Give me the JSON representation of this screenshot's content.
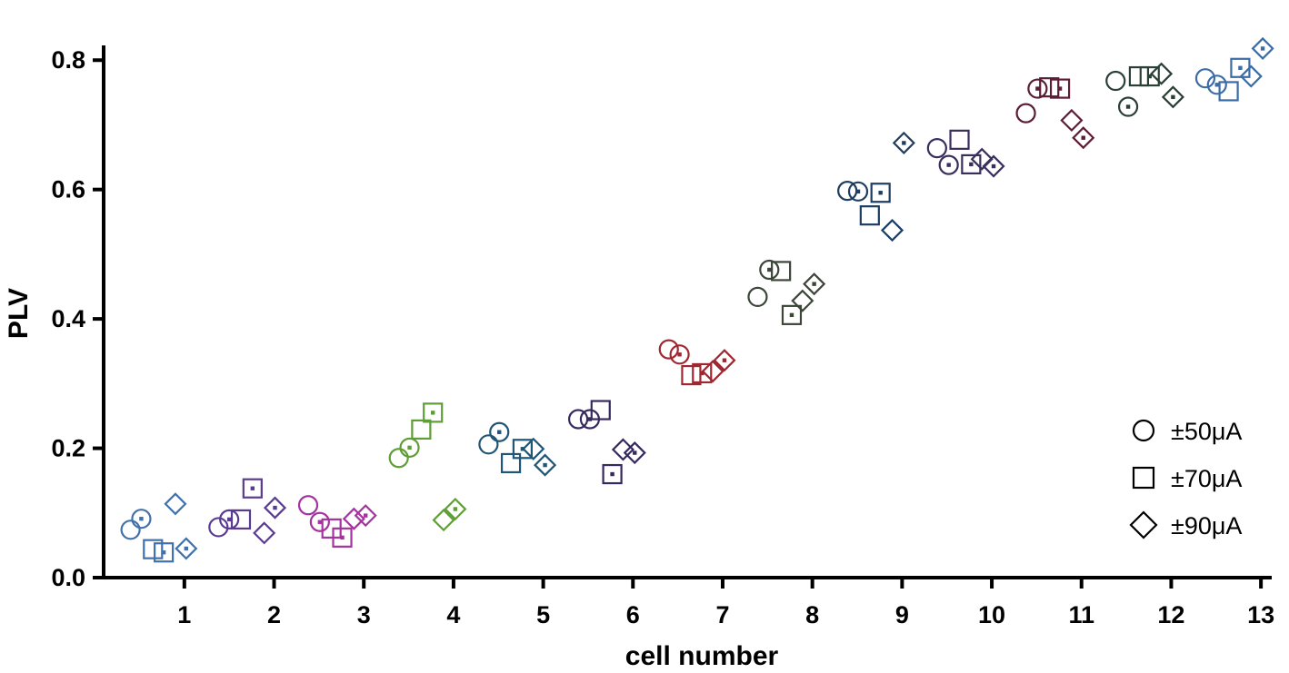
{
  "chart_data": {
    "type": "scatter",
    "title": "",
    "xlabel": "cell number",
    "ylabel": "PLV",
    "xlim": [
      0.1,
      13.1
    ],
    "ylim": [
      0.0,
      0.82
    ],
    "x_ticks": [
      1,
      2,
      3,
      4,
      5,
      6,
      7,
      8,
      9,
      10,
      11,
      12,
      13
    ],
    "x_tick_labels": [
      "1",
      "2",
      "3",
      "4",
      "5",
      "6",
      "7",
      "8",
      "9",
      "10",
      "11",
      "12",
      "13"
    ],
    "y_ticks": [
      0.0,
      0.2,
      0.4,
      0.6,
      0.8
    ],
    "y_tick_labels": [
      "0.0",
      "0.2",
      "0.4",
      "0.6",
      "0.8"
    ],
    "grid": false,
    "legend_position": "bottom-right",
    "legend": [
      {
        "symbol": "circle",
        "label": "±50μA"
      },
      {
        "symbol": "square",
        "label": "±70μA"
      },
      {
        "symbol": "diamond",
        "label": "±90μA"
      }
    ],
    "cells": [
      {
        "cell": 1,
        "color": "#3f72ad",
        "points": [
          {
            "x": 0.4,
            "y": 0.074,
            "symbol": "circle",
            "dot": false
          },
          {
            "x": 0.52,
            "y": 0.091,
            "symbol": "circle",
            "dot": true
          },
          {
            "x": 0.65,
            "y": 0.044,
            "symbol": "square",
            "dot": false
          },
          {
            "x": 0.77,
            "y": 0.039,
            "symbol": "square",
            "dot": true
          },
          {
            "x": 0.9,
            "y": 0.114,
            "symbol": "diamond",
            "dot": false
          },
          {
            "x": 1.02,
            "y": 0.045,
            "symbol": "diamond",
            "dot": true
          }
        ]
      },
      {
        "cell": 2,
        "color": "#5a3a92",
        "points": [
          {
            "x": 1.38,
            "y": 0.078,
            "symbol": "circle",
            "dot": false
          },
          {
            "x": 1.5,
            "y": 0.09,
            "symbol": "circle",
            "dot": true
          },
          {
            "x": 1.63,
            "y": 0.09,
            "symbol": "square",
            "dot": false
          },
          {
            "x": 1.76,
            "y": 0.138,
            "symbol": "square",
            "dot": true
          },
          {
            "x": 1.89,
            "y": 0.069,
            "symbol": "diamond",
            "dot": false
          },
          {
            "x": 2.01,
            "y": 0.108,
            "symbol": "diamond",
            "dot": true
          }
        ]
      },
      {
        "cell": 3,
        "color": "#a4339e",
        "points": [
          {
            "x": 2.38,
            "y": 0.112,
            "symbol": "circle",
            "dot": false
          },
          {
            "x": 2.51,
            "y": 0.086,
            "symbol": "circle",
            "dot": true
          },
          {
            "x": 2.64,
            "y": 0.076,
            "symbol": "square",
            "dot": false
          },
          {
            "x": 2.76,
            "y": 0.062,
            "symbol": "square",
            "dot": true
          },
          {
            "x": 2.89,
            "y": 0.091,
            "symbol": "diamond",
            "dot": false
          },
          {
            "x": 3.02,
            "y": 0.096,
            "symbol": "diamond",
            "dot": true
          }
        ]
      },
      {
        "cell": 4,
        "color": "#5e9e34",
        "points": [
          {
            "x": 3.39,
            "y": 0.185,
            "symbol": "circle",
            "dot": false
          },
          {
            "x": 3.51,
            "y": 0.201,
            "symbol": "circle",
            "dot": true
          },
          {
            "x": 3.64,
            "y": 0.229,
            "symbol": "square",
            "dot": false
          },
          {
            "x": 3.77,
            "y": 0.255,
            "symbol": "square",
            "dot": true
          },
          {
            "x": 3.89,
            "y": 0.089,
            "symbol": "diamond",
            "dot": false
          },
          {
            "x": 4.02,
            "y": 0.106,
            "symbol": "diamond",
            "dot": true
          }
        ]
      },
      {
        "cell": 5,
        "color": "#1f5577",
        "points": [
          {
            "x": 4.39,
            "y": 0.206,
            "symbol": "circle",
            "dot": false
          },
          {
            "x": 4.51,
            "y": 0.225,
            "symbol": "circle",
            "dot": true
          },
          {
            "x": 4.64,
            "y": 0.177,
            "symbol": "square",
            "dot": false
          },
          {
            "x": 4.77,
            "y": 0.199,
            "symbol": "square",
            "dot": true
          },
          {
            "x": 4.89,
            "y": 0.199,
            "symbol": "diamond",
            "dot": false
          },
          {
            "x": 5.02,
            "y": 0.174,
            "symbol": "diamond",
            "dot": true
          }
        ]
      },
      {
        "cell": 6,
        "color": "#35295e",
        "points": [
          {
            "x": 5.39,
            "y": 0.245,
            "symbol": "circle",
            "dot": false
          },
          {
            "x": 5.52,
            "y": 0.245,
            "symbol": "circle",
            "dot": true
          },
          {
            "x": 5.64,
            "y": 0.259,
            "symbol": "square",
            "dot": false
          },
          {
            "x": 5.77,
            "y": 0.16,
            "symbol": "square",
            "dot": true
          },
          {
            "x": 5.89,
            "y": 0.198,
            "symbol": "diamond",
            "dot": false
          },
          {
            "x": 6.02,
            "y": 0.193,
            "symbol": "diamond",
            "dot": true
          }
        ]
      },
      {
        "cell": 7,
        "color": "#9e2831",
        "points": [
          {
            "x": 6.4,
            "y": 0.353,
            "symbol": "circle",
            "dot": false
          },
          {
            "x": 6.52,
            "y": 0.345,
            "symbol": "circle",
            "dot": true
          },
          {
            "x": 6.65,
            "y": 0.313,
            "symbol": "square",
            "dot": false
          },
          {
            "x": 6.77,
            "y": 0.316,
            "symbol": "square",
            "dot": true
          },
          {
            "x": 6.89,
            "y": 0.319,
            "symbol": "diamond",
            "dot": false
          },
          {
            "x": 7.02,
            "y": 0.336,
            "symbol": "diamond",
            "dot": true
          }
        ]
      },
      {
        "cell": 8,
        "color": "#3b4639",
        "points": [
          {
            "x": 7.39,
            "y": 0.434,
            "symbol": "circle",
            "dot": false
          },
          {
            "x": 7.52,
            "y": 0.476,
            "symbol": "circle",
            "dot": true
          },
          {
            "x": 7.65,
            "y": 0.474,
            "symbol": "square",
            "dot": false
          },
          {
            "x": 7.77,
            "y": 0.406,
            "symbol": "square",
            "dot": true
          },
          {
            "x": 7.89,
            "y": 0.428,
            "symbol": "diamond",
            "dot": false
          },
          {
            "x": 8.02,
            "y": 0.454,
            "symbol": "diamond",
            "dot": true
          }
        ]
      },
      {
        "cell": 9,
        "color": "#1d3d62",
        "points": [
          {
            "x": 8.39,
            "y": 0.598,
            "symbol": "circle",
            "dot": false
          },
          {
            "x": 8.51,
            "y": 0.597,
            "symbol": "circle",
            "dot": true
          },
          {
            "x": 8.64,
            "y": 0.56,
            "symbol": "square",
            "dot": false
          },
          {
            "x": 8.76,
            "y": 0.595,
            "symbol": "square",
            "dot": true
          },
          {
            "x": 8.89,
            "y": 0.537,
            "symbol": "diamond",
            "dot": false
          },
          {
            "x": 9.02,
            "y": 0.672,
            "symbol": "diamond",
            "dot": true
          }
        ]
      },
      {
        "cell": 10,
        "color": "#3a2f5c",
        "points": [
          {
            "x": 9.39,
            "y": 0.664,
            "symbol": "circle",
            "dot": false
          },
          {
            "x": 9.52,
            "y": 0.638,
            "symbol": "circle",
            "dot": true
          },
          {
            "x": 9.64,
            "y": 0.677,
            "symbol": "square",
            "dot": false
          },
          {
            "x": 9.77,
            "y": 0.639,
            "symbol": "square",
            "dot": true
          },
          {
            "x": 9.89,
            "y": 0.647,
            "symbol": "diamond",
            "dot": false
          },
          {
            "x": 10.02,
            "y": 0.636,
            "symbol": "diamond",
            "dot": true
          }
        ]
      },
      {
        "cell": 11,
        "color": "#5b1e37",
        "points": [
          {
            "x": 10.38,
            "y": 0.718,
            "symbol": "circle",
            "dot": false
          },
          {
            "x": 10.51,
            "y": 0.756,
            "symbol": "circle",
            "dot": true
          },
          {
            "x": 10.64,
            "y": 0.758,
            "symbol": "square",
            "dot": false
          },
          {
            "x": 10.76,
            "y": 0.756,
            "symbol": "square",
            "dot": true
          },
          {
            "x": 10.89,
            "y": 0.707,
            "symbol": "diamond",
            "dot": false
          },
          {
            "x": 11.02,
            "y": 0.68,
            "symbol": "diamond",
            "dot": true
          }
        ]
      },
      {
        "cell": 12,
        "color": "#2b3f36",
        "points": [
          {
            "x": 11.38,
            "y": 0.768,
            "symbol": "circle",
            "dot": false
          },
          {
            "x": 11.52,
            "y": 0.728,
            "symbol": "circle",
            "dot": true
          },
          {
            "x": 11.64,
            "y": 0.775,
            "symbol": "square",
            "dot": false
          },
          {
            "x": 11.76,
            "y": 0.775,
            "symbol": "square",
            "dot": true
          },
          {
            "x": 11.89,
            "y": 0.779,
            "symbol": "diamond",
            "dot": false
          },
          {
            "x": 12.02,
            "y": 0.743,
            "symbol": "diamond",
            "dot": true
          }
        ]
      },
      {
        "cell": 13,
        "color": "#3c6ca6",
        "points": [
          {
            "x": 12.38,
            "y": 0.772,
            "symbol": "circle",
            "dot": false
          },
          {
            "x": 12.51,
            "y": 0.762,
            "symbol": "circle",
            "dot": true
          },
          {
            "x": 12.64,
            "y": 0.752,
            "symbol": "square",
            "dot": false
          },
          {
            "x": 12.77,
            "y": 0.788,
            "symbol": "square",
            "dot": true
          },
          {
            "x": 12.89,
            "y": 0.775,
            "symbol": "diamond",
            "dot": false
          },
          {
            "x": 13.02,
            "y": 0.818,
            "symbol": "diamond",
            "dot": true
          }
        ]
      }
    ]
  }
}
